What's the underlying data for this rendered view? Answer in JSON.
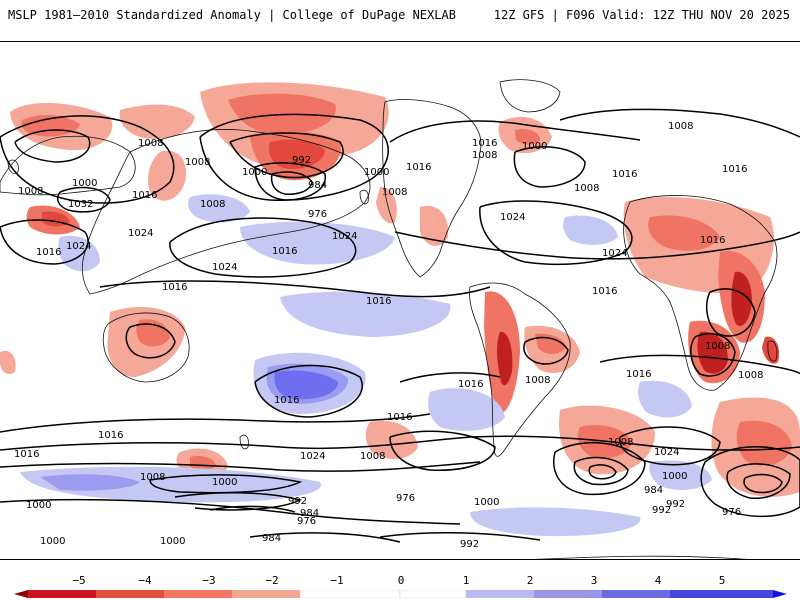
{
  "header": {
    "title": "MSLP 1981–2010 Standardized Anomaly | College of DuPage NEXLAB",
    "run_info": "12Z GFS | F096 Valid: 12Z THU NOV 20 2025"
  },
  "map": {
    "projection": "global cylindrical",
    "contour_interval_hpa": 8,
    "contour_labels": [
      {
        "text": "1008"
      },
      {
        "text": "1008"
      },
      {
        "text": "1000"
      },
      {
        "text": "1008"
      },
      {
        "text": "1016"
      },
      {
        "text": "1032"
      },
      {
        "text": "1024"
      },
      {
        "text": "1016"
      },
      {
        "text": "1024"
      },
      {
        "text": "1008"
      },
      {
        "text": "992"
      },
      {
        "text": "1000"
      },
      {
        "text": "984"
      },
      {
        "text": "976"
      },
      {
        "text": "1000"
      },
      {
        "text": "1008"
      },
      {
        "text": "1024"
      },
      {
        "text": "1016"
      },
      {
        "text": "1024"
      },
      {
        "text": "1016"
      },
      {
        "text": "1016"
      },
      {
        "text": "1016"
      },
      {
        "text": "1008"
      },
      {
        "text": "1000"
      },
      {
        "text": "1016"
      },
      {
        "text": "1024"
      },
      {
        "text": "1008"
      },
      {
        "text": "1016"
      },
      {
        "text": "1016"
      },
      {
        "text": "1016"
      },
      {
        "text": "1008"
      },
      {
        "text": "1024"
      },
      {
        "text": "1016"
      },
      {
        "text": "1008"
      },
      {
        "text": "1016"
      },
      {
        "text": "1016"
      },
      {
        "text": "1008"
      },
      {
        "text": "1016"
      },
      {
        "text": "1016"
      },
      {
        "text": "1016"
      },
      {
        "text": "1024"
      },
      {
        "text": "1016"
      },
      {
        "text": "1008"
      },
      {
        "text": "1000"
      },
      {
        "text": "1000"
      },
      {
        "text": "992"
      },
      {
        "text": "984"
      },
      {
        "text": "976"
      },
      {
        "text": "976"
      },
      {
        "text": "1008"
      },
      {
        "text": "1000"
      },
      {
        "text": "1008"
      },
      {
        "text": "1024"
      },
      {
        "text": "1008"
      },
      {
        "text": "984"
      },
      {
        "text": "992"
      },
      {
        "text": "1000"
      },
      {
        "text": "1000"
      },
      {
        "text": "984"
      },
      {
        "text": "992"
      },
      {
        "text": "976"
      },
      {
        "text": "1000"
      },
      {
        "text": "992"
      },
      {
        "text": "1000"
      },
      {
        "text": "984"
      },
      {
        "text": "1000"
      },
      {
        "text": "1000"
      }
    ]
  },
  "colorbar": {
    "ticks": [
      "−5",
      "−4",
      "−3",
      "−2",
      "−1",
      "0",
      "1",
      "2",
      "3",
      "4",
      "5"
    ],
    "colors": {
      "neg5": "#8b0000",
      "neg4": "#c8141e",
      "neg3": "#e0503c",
      "neg2": "#f07864",
      "neg1": "#f5a590",
      "zero": "#ffffff",
      "pos1": "#b8baf2",
      "pos2": "#9696ea",
      "pos3": "#6c6ce0",
      "pos4": "#4646e0",
      "pos5": "#1010e8"
    }
  },
  "colors": {
    "neg_light": "#f5a898",
    "neg_mid": "#ef7464",
    "neg_strong": "#e2483c",
    "neg_dark": "#c02020",
    "pos_light": "#c6c8f4",
    "pos_mid": "#9a9cf0",
    "pos_strong": "#6e6ef0",
    "coast": "#111111",
    "contour": "#000000"
  }
}
